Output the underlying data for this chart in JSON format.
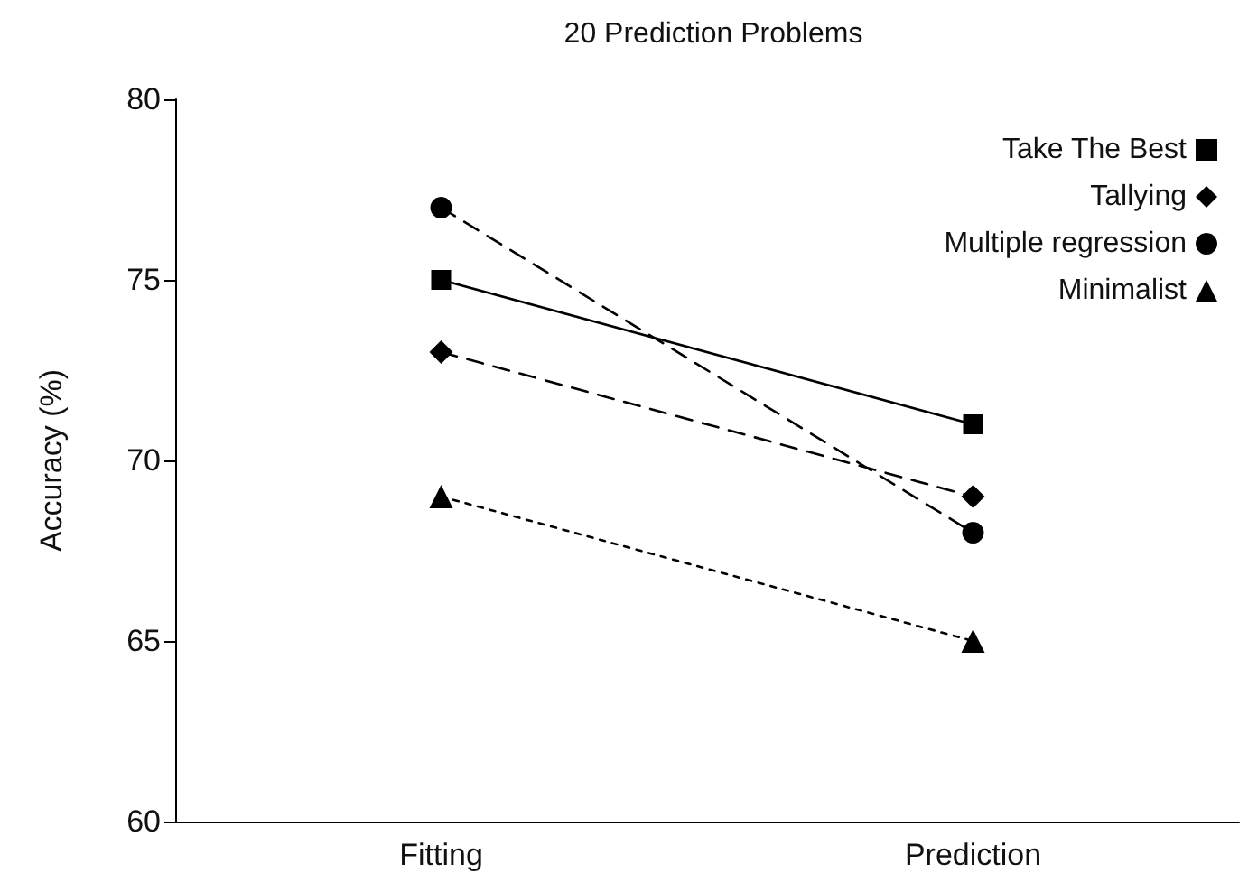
{
  "chart_data": {
    "type": "line",
    "title": "20 Prediction Problems",
    "ylabel": "Accuracy (%)",
    "categories": [
      "Fitting",
      "Prediction"
    ],
    "series": [
      {
        "name": "Take The Best",
        "color": "#000000",
        "values": [
          75,
          71
        ],
        "marker": "square",
        "line_style": "solid"
      },
      {
        "name": "Tallying",
        "color": "#000000",
        "values": [
          73,
          69
        ],
        "marker": "diamond",
        "line_style": "dashed"
      },
      {
        "name": "Multiple regression",
        "color": "#000000",
        "values": [
          77,
          68
        ],
        "marker": "circle",
        "line_style": "dashed"
      },
      {
        "name": "Minimalist",
        "color": "#000000",
        "values": [
          69,
          65
        ],
        "marker": "triangle",
        "line_style": "dotted"
      }
    ],
    "ylim": [
      60,
      80
    ],
    "yticks": [
      60,
      65,
      70,
      75,
      80
    ],
    "grid": false,
    "legend": "top right"
  }
}
